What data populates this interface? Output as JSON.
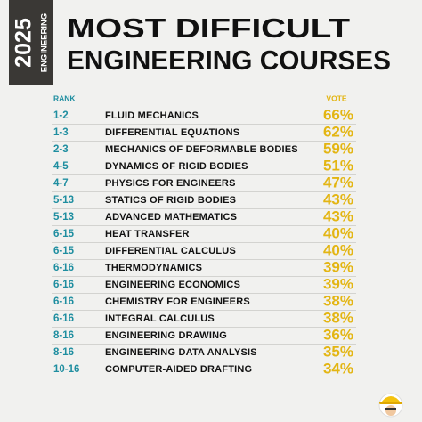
{
  "header": {
    "year": "2025",
    "tag": "ENGINEERING",
    "title_line1": "MOST DIFFICULT",
    "title_line2": "ENGINEERING COURSES"
  },
  "table": {
    "columns": [
      "RANK",
      "VOTE"
    ],
    "rows": [
      [
        "1-2",
        "FLUID MECHANICS",
        "66%"
      ],
      [
        "1-3",
        "DIFFERENTIAL EQUATIONS",
        "62%"
      ],
      [
        "2-3",
        "MECHANICS OF DEFORMABLE BODIES",
        "59%"
      ],
      [
        "4-5",
        "DYNAMICS OF RIGID BODIES",
        "51%"
      ],
      [
        "4-7",
        "PHYSICS FOR ENGINEERS",
        "47%"
      ],
      [
        "5-13",
        "STATICS OF RIGID BODIES",
        "43%"
      ],
      [
        "5-13",
        "ADVANCED MATHEMATICS",
        "43%"
      ],
      [
        "6-15",
        "HEAT TRANSFER",
        "40%"
      ],
      [
        "6-15",
        "DIFFERENTIAL CALCULUS",
        "40%"
      ],
      [
        "6-16",
        "THERMODYNAMICS",
        "39%"
      ],
      [
        "6-16",
        "ENGINEERING ECONOMICS",
        "39%"
      ],
      [
        "6-16",
        "CHEMISTRY FOR ENGINEERS",
        "38%"
      ],
      [
        "6-16",
        "INTEGRAL CALCULUS",
        "38%"
      ],
      [
        "8-16",
        "ENGINEERING DRAWING",
        "36%"
      ],
      [
        "8-16",
        "ENGINEERING DATA ANALYSIS",
        "35%"
      ],
      [
        "10-16",
        "COMPUTER-AIDED DRAFTING",
        "34%"
      ]
    ]
  }
}
